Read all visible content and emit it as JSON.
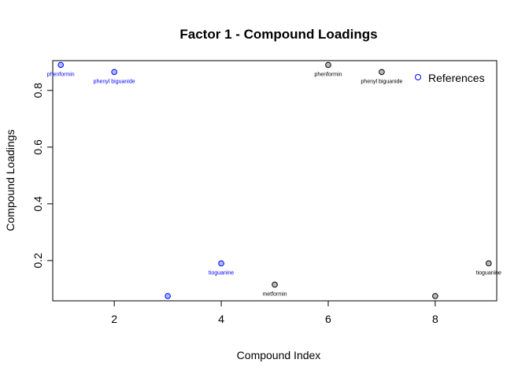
{
  "chart_data": {
    "type": "scatter",
    "title": "Factor 1 - Compound Loadings",
    "xlabel": "Compound Index",
    "ylabel": "Compound Loadings",
    "xlim": [
      0.85,
      9.15
    ],
    "ylim": [
      0.058,
      0.905
    ],
    "xticks": [
      2,
      4,
      6,
      8
    ],
    "yticks": [
      0.2,
      0.4,
      0.6,
      0.8
    ],
    "grid": false,
    "legend": {
      "position": "top-right",
      "entries": [
        "References"
      ]
    },
    "colors": {
      "query": "#0000FF",
      "query_fill": "#AABBFF",
      "reference": "#000000",
      "reference_fill": "#BBBBBB"
    },
    "series": [
      {
        "x": [
          1,
          2,
          3,
          4
        ],
        "y": [
          0.89,
          0.865,
          0.075,
          0.19
        ],
        "labels": [
          "phenformin",
          "phenyl biguanide",
          "",
          "tioguanine"
        ]
      },
      {
        "name": "References",
        "x": [
          5,
          6,
          7,
          8,
          9
        ],
        "y": [
          0.115,
          0.89,
          0.865,
          0.075,
          0.19
        ],
        "labels": [
          "metformin",
          "phenformin",
          "phenyl biguanide",
          "",
          "tioguanine"
        ]
      }
    ]
  }
}
